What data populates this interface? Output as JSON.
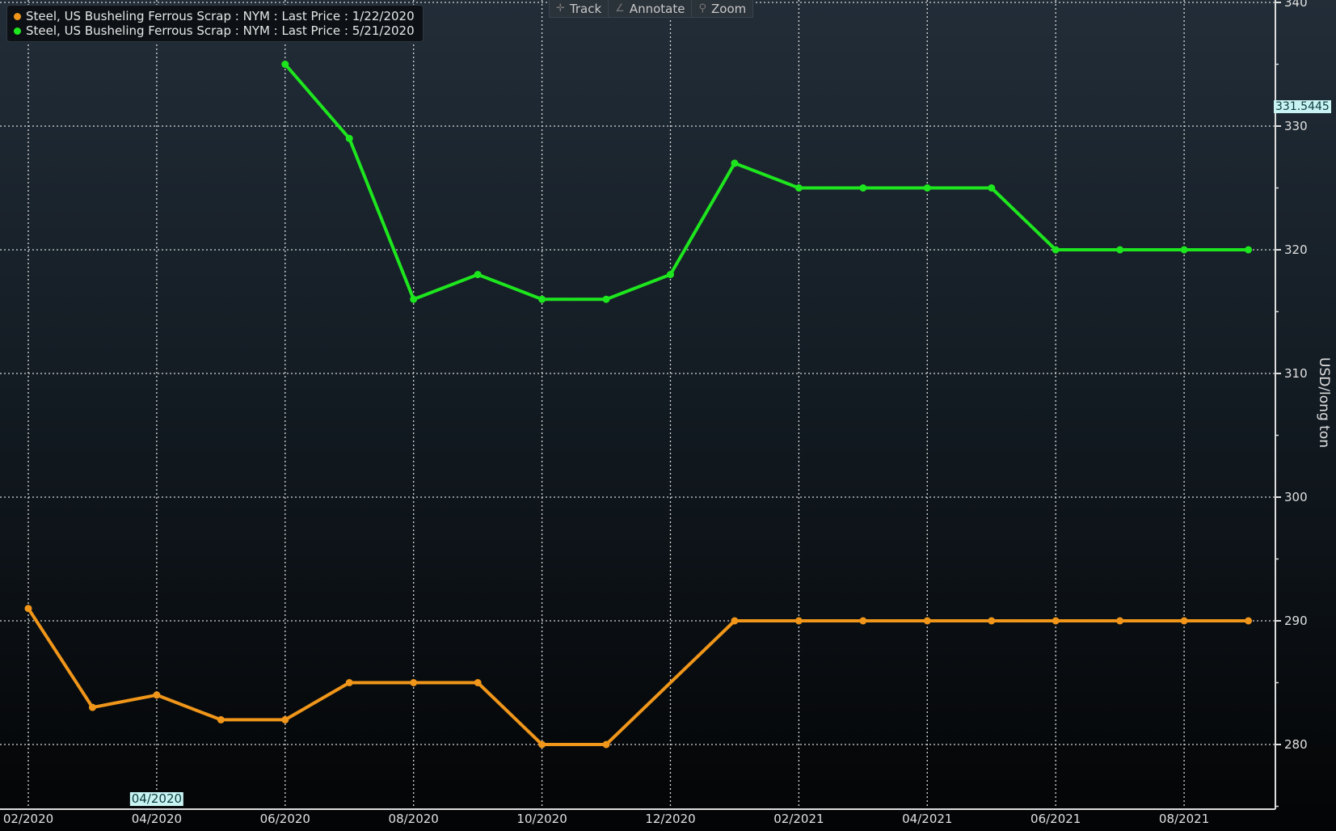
{
  "toolbar": {
    "track": "Track",
    "annotate": "Annotate",
    "zoom": "Zoom"
  },
  "cursor": {
    "y_value": "331.5445",
    "x_value": "04/2020"
  },
  "colors": {
    "orange": "#f0961a",
    "green": "#1ee61e"
  },
  "chart_data": {
    "type": "line",
    "title": "",
    "xlabel": "",
    "ylabel": "USD/long ton",
    "ylim": [
      275,
      340
    ],
    "yticks": [
      280,
      290,
      300,
      310,
      320,
      330,
      340
    ],
    "ytick_labels": [
      "280",
      "290",
      "300",
      "310",
      "320",
      "330",
      "340"
    ],
    "grid": true,
    "legend_position": "top-left",
    "x": [
      "02/2020",
      "03/2020",
      "04/2020",
      "05/2020",
      "06/2020",
      "07/2020",
      "08/2020",
      "09/2020",
      "10/2020",
      "11/2020",
      "12/2020",
      "01/2021",
      "02/2021",
      "03/2021",
      "04/2021",
      "05/2021",
      "06/2021",
      "07/2021",
      "08/2021",
      "09/2021"
    ],
    "xtick_labels": [
      "02/2020",
      "04/2020",
      "06/2020",
      "08/2020",
      "10/2020",
      "12/2020",
      "02/2021",
      "04/2021",
      "06/2021",
      "08/2021"
    ],
    "series": [
      {
        "name": "Steel, US Busheling Ferrous Scrap : NYM : Last Price : 1/22/2020",
        "color": "#f0961a",
        "values": [
          291,
          283,
          284,
          282,
          282,
          285,
          285,
          285,
          280,
          280,
          null,
          290,
          290,
          290,
          290,
          290,
          290,
          290,
          290,
          290
        ]
      },
      {
        "name": "Steel, US Busheling Ferrous Scrap : NYM : Last Price : 5/21/2020",
        "color": "#1ee61e",
        "values": [
          null,
          null,
          null,
          null,
          335,
          329,
          316,
          318,
          316,
          316,
          318,
          327,
          325,
          325,
          325,
          325,
          320,
          320,
          320,
          320
        ]
      }
    ]
  }
}
